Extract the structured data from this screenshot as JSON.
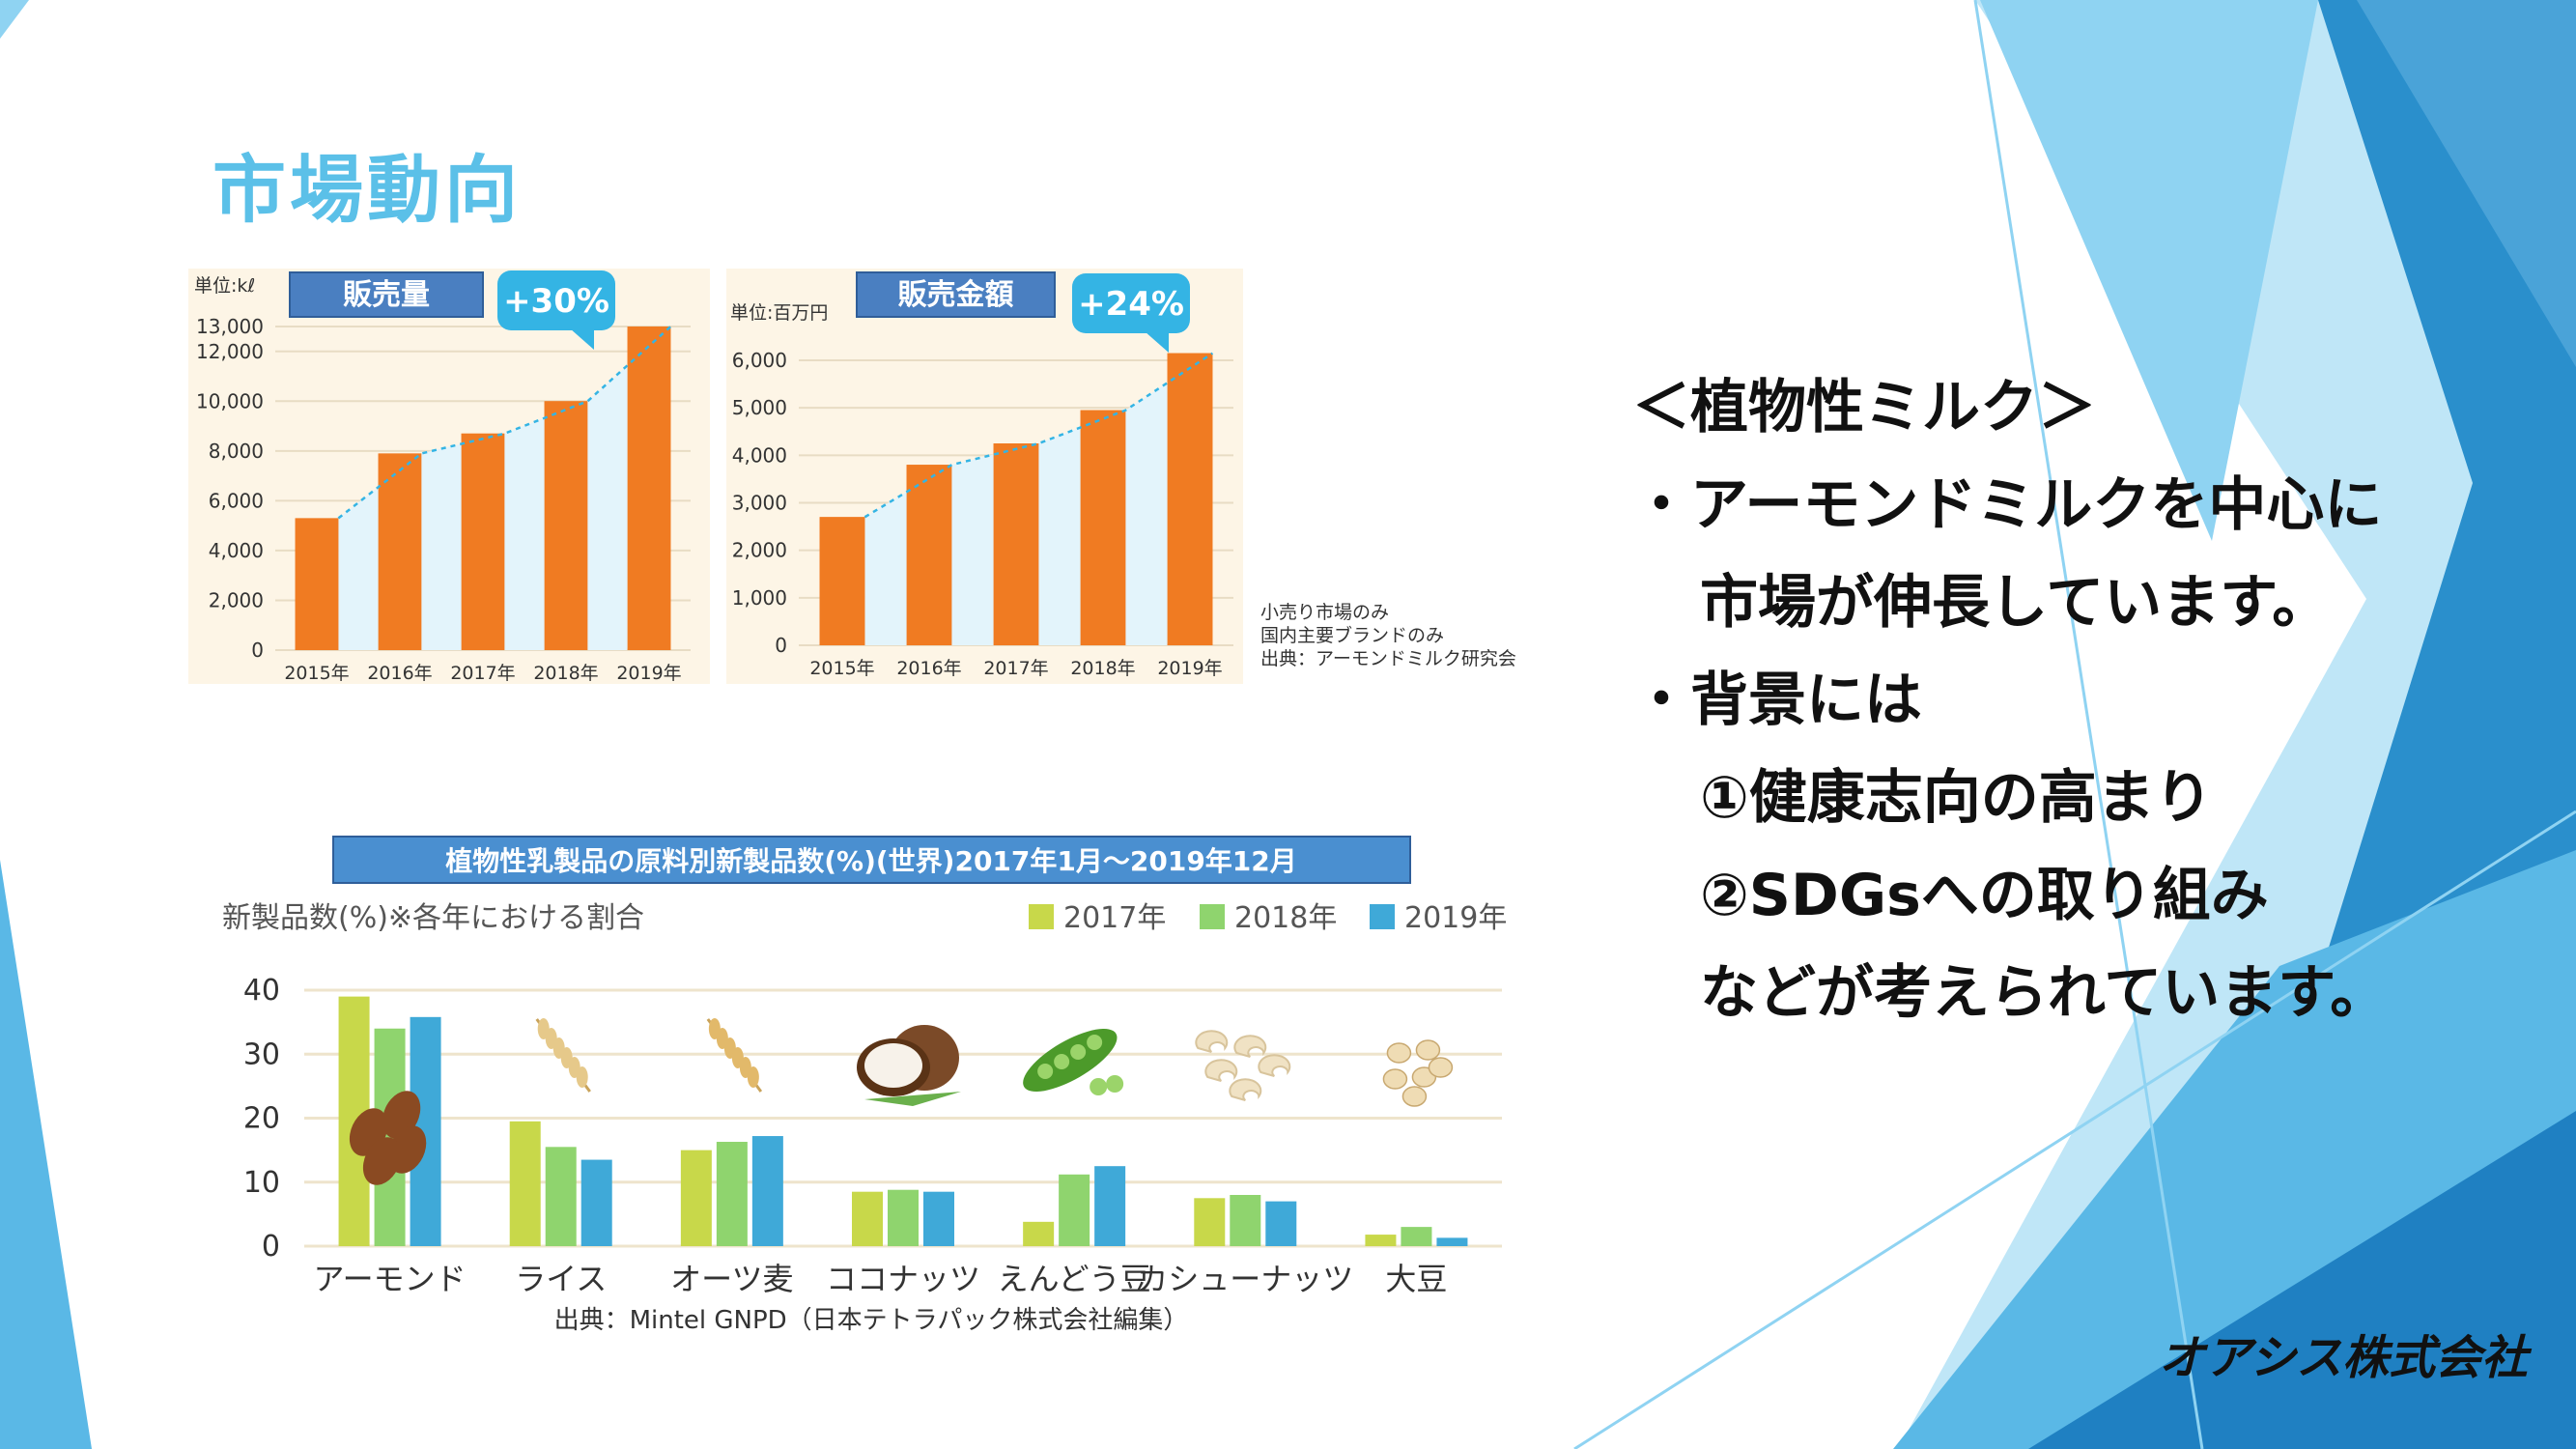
{
  "page": {
    "title": "市場動向",
    "company": "オアシス株式会社"
  },
  "colors": {
    "title_blue": "#5bc0e8",
    "bar_orange": "#f07b22",
    "callout_blue": "#34b4e4",
    "label_box": "#4a7fc1",
    "bg_blue_dark": "#2a8fcc",
    "bg_blue_light": "#8fd3f2",
    "s2017": "#c8d84a",
    "s2018": "#8fd46e",
    "s2019": "#3fa9d8"
  },
  "bullets": {
    "heading": "＜植物性ミルク＞",
    "l1": "・アーモンドミルクを中心に",
    "l2": "市場が伸長しています。",
    "l3": "・背景には",
    "l4": "①健康志向の高まり",
    "l5": "②SDGsへの取り組み",
    "l6": "などが考えられています。"
  },
  "notes": {
    "n1": "小売り市場のみ",
    "n2": "国内主要ブランドのみ",
    "n3": "出典：アーモンドミルク研究会"
  },
  "chart_data": [
    {
      "type": "bar",
      "title": "販売量",
      "unit_label": "単位:kℓ",
      "callout": "+30%",
      "categories": [
        "2015年",
        "2016年",
        "2017年",
        "2018年",
        "2019年"
      ],
      "values": [
        5300,
        7900,
        8700,
        10000,
        13000
      ],
      "yticks": [
        "0",
        "2,000",
        "4,000",
        "6,000",
        "8,000",
        "10,000",
        "12,000",
        "13,000"
      ],
      "ylim": [
        0,
        13000
      ]
    },
    {
      "type": "bar",
      "title": "販売金額",
      "unit_label": "単位:百万円",
      "callout": "+24%",
      "categories": [
        "2015年",
        "2016年",
        "2017年",
        "2018年",
        "2019年"
      ],
      "values": [
        2700,
        3800,
        4250,
        4950,
        6150
      ],
      "yticks": [
        "0",
        "1,000",
        "2,000",
        "3,000",
        "4,000",
        "5,000",
        "6,000"
      ],
      "ylim": [
        0,
        6000
      ]
    },
    {
      "type": "bar",
      "title": "植物性乳製品の原料別新製品数(%)(世界)2017年1月〜2019年12月",
      "ylabel": "新製品数(%)※各年における割合",
      "source": "出典：Mintel GNPD（日本テトラパック株式会社編集）",
      "categories": [
        "アーモンド",
        "ライス",
        "オーツ麦",
        "ココナッツ",
        "えんどう豆",
        "カシューナッツ",
        "大豆"
      ],
      "series": [
        {
          "name": "2017年",
          "values": [
            39,
            19.5,
            15,
            8.5,
            3.8,
            7.5,
            1.8
          ]
        },
        {
          "name": "2018年",
          "values": [
            34,
            15.5,
            16.3,
            8.8,
            11.2,
            8,
            3
          ]
        },
        {
          "name": "2019年",
          "values": [
            35.8,
            13.5,
            17.2,
            8.5,
            12.5,
            7,
            1.3
          ]
        }
      ],
      "yticks": [
        "0",
        "10",
        "20",
        "30",
        "40"
      ],
      "ylim": [
        0,
        40
      ]
    }
  ]
}
